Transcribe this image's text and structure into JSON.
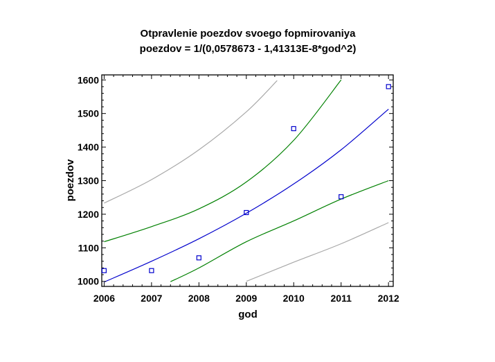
{
  "chart_data": {
    "type": "scatter",
    "title": "Otpravlenie poezdov svoego fopmirovaniya",
    "subtitle": "poezdov = 1/(0,0578673 - 1,41313E-8*god^2)",
    "xlabel": "god",
    "ylabel": "poezdov",
    "xlim": [
      2005.95,
      2012.1
    ],
    "ylim": [
      985,
      1615
    ],
    "x_ticks": [
      "2006",
      "2007",
      "2008",
      "2009",
      "2010",
      "2011",
      "2012"
    ],
    "y_ticks": [
      "1000",
      "1100",
      "1200",
      "1300",
      "1400",
      "1500",
      "1600"
    ],
    "grid": false,
    "points": {
      "color": "#0000cc",
      "x": [
        2006,
        2007,
        2008,
        2009,
        2010,
        2011,
        2012
      ],
      "y": [
        1032,
        1032,
        1070,
        1205,
        1455,
        1252,
        1580
      ]
    },
    "series": [
      {
        "role": "fit",
        "color": "#0000cc",
        "x": [
          2006,
          2007,
          2008,
          2009,
          2010,
          2011,
          2012
        ],
        "y": [
          998,
          1060,
          1127,
          1203,
          1290,
          1392,
          1513
        ]
      },
      {
        "role": "confidence-upper",
        "color": "#008000",
        "x": [
          2006,
          2007,
          2008,
          2009,
          2010,
          2011
        ],
        "y": [
          1118,
          1163,
          1216,
          1296,
          1420,
          1600
        ]
      },
      {
        "role": "confidence-lower",
        "color": "#008000",
        "x": [
          2007.4,
          2008,
          2009,
          2010,
          2011,
          2012
        ],
        "y": [
          999,
          1040,
          1118,
          1180,
          1245,
          1300
        ]
      },
      {
        "role": "prediction-upper",
        "color": "#a8a8a8",
        "x": [
          2006,
          2007,
          2008,
          2009,
          2009.65
        ],
        "y": [
          1233,
          1303,
          1392,
          1505,
          1598
        ]
      },
      {
        "role": "prediction-lower",
        "color": "#a8a8a8",
        "x": [
          2009,
          2010,
          2011,
          2012
        ],
        "y": [
          1000,
          1057,
          1112,
          1175
        ]
      }
    ]
  }
}
